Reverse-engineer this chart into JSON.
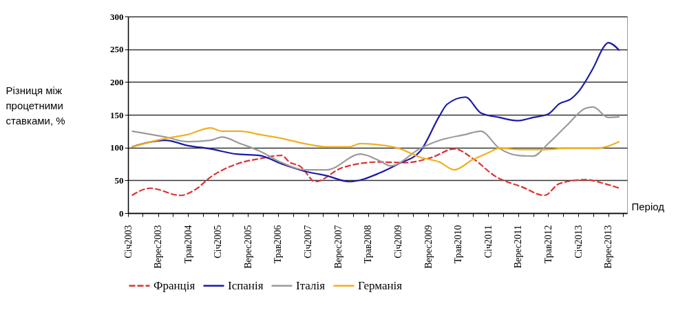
{
  "chart_data": {
    "type": "line",
    "xlabel": "Період",
    "ylabel": "Різниця між процетними ставками, %",
    "xlim": [
      "2003-01",
      "2014-02"
    ],
    "ylim": [
      0,
      300
    ],
    "yticks": [
      0,
      50,
      100,
      150,
      200,
      250,
      300
    ],
    "xticks": [
      {
        "value": "2003-01",
        "label": "Січ2003"
      },
      {
        "value": "2003-05",
        "label": null
      },
      {
        "value": "2003-09",
        "label": "Верес2003"
      },
      {
        "value": "2004-01",
        "label": null
      },
      {
        "value": "2004-05",
        "label": "Трав2004"
      },
      {
        "value": "2004-09",
        "label": null
      },
      {
        "value": "2005-01",
        "label": "Січ2005"
      },
      {
        "value": "2005-05",
        "label": null
      },
      {
        "value": "2005-09",
        "label": "Верес2005"
      },
      {
        "value": "2006-01",
        "label": null
      },
      {
        "value": "2006-05",
        "label": "Трав2006"
      },
      {
        "value": "2006-09",
        "label": null
      },
      {
        "value": "2007-01",
        "label": "Січ2007"
      },
      {
        "value": "2007-05",
        "label": null
      },
      {
        "value": "2007-09",
        "label": "Верес2007"
      },
      {
        "value": "2008-01",
        "label": null
      },
      {
        "value": "2008-05",
        "label": "Трав2008"
      },
      {
        "value": "2008-09",
        "label": null
      },
      {
        "value": "2009-01",
        "label": "Січ2009"
      },
      {
        "value": "2009-05",
        "label": null
      },
      {
        "value": "2009-09",
        "label": "Верес2009"
      },
      {
        "value": "2010-01",
        "label": null
      },
      {
        "value": "2010-05",
        "label": "Трав2010"
      },
      {
        "value": "2010-09",
        "label": null
      },
      {
        "value": "2011-01",
        "label": "Січ2011"
      },
      {
        "value": "2011-05",
        "label": null
      },
      {
        "value": "2011-09",
        "label": "Верес2011"
      },
      {
        "value": "2012-01",
        "label": null
      },
      {
        "value": "2012-05",
        "label": "Трав2012"
      },
      {
        "value": "2012-09",
        "label": null
      },
      {
        "value": "2013-01",
        "label": "Січ2013"
      },
      {
        "value": "2013-05",
        "label": null
      },
      {
        "value": "2013-09",
        "label": "Верес2013"
      },
      {
        "value": "2014-01",
        "label": null
      }
    ],
    "grid": "y",
    "legend": "bottom",
    "marker": "none",
    "series": [
      {
        "name": "Франція",
        "color": "#e03030",
        "line_style": "dashed",
        "x": [
          "2003-02",
          "2003-07",
          "2004-03",
          "2004-07",
          "2004-11",
          "2005-06",
          "2005-12",
          "2006-06",
          "2006-08",
          "2006-11",
          "2007-03",
          "2007-10",
          "2008-08",
          "2009-03",
          "2009-10",
          "2010-04",
          "2010-09",
          "2011-03",
          "2011-10",
          "2012-04",
          "2012-08",
          "2013-03",
          "2013-08",
          "2013-12"
        ],
        "values": [
          27,
          38,
          27,
          36,
          55,
          75,
          83,
          88,
          78,
          71,
          48,
          69,
          78,
          77,
          85,
          98,
          83,
          56,
          40,
          27,
          45,
          51,
          45,
          38
        ]
      },
      {
        "name": "Іспанія",
        "color": "#1a1aa8",
        "line_style": "solid",
        "x": [
          "2003-02",
          "2003-11",
          "2004-05",
          "2004-11",
          "2005-06",
          "2005-12",
          "2006-06",
          "2006-12",
          "2007-06",
          "2007-12",
          "2008-08",
          "2009-01",
          "2009-07",
          "2009-12",
          "2010-02",
          "2010-07",
          "2010-11",
          "2011-04",
          "2011-09",
          "2012-01",
          "2012-05",
          "2012-08",
          "2012-11",
          "2013-01",
          "2013-05",
          "2013-08",
          "2013-09",
          "2013-12"
        ],
        "values": [
          101,
          111,
          103,
          98,
          90,
          88,
          75,
          64,
          57,
          48,
          61,
          75,
          95,
          148,
          166,
          177,
          153,
          146,
          141,
          146,
          151,
          167,
          174,
          185,
          221,
          255,
          260,
          248
        ]
      },
      {
        "name": "Італія",
        "color": "#9a9a9a",
        "line_style": "solid",
        "x": [
          "2003-02",
          "2003-11",
          "2004-05",
          "2004-11",
          "2005-02",
          "2005-07",
          "2005-12",
          "2006-06",
          "2006-12",
          "2007-06",
          "2008-03",
          "2008-08",
          "2008-11",
          "2009-07",
          "2009-12",
          "2010-07",
          "2010-11",
          "2011-04",
          "2011-09",
          "2012-01",
          "2012-05",
          "2012-10",
          "2013-03",
          "2013-05",
          "2013-09",
          "2013-12"
        ],
        "values": [
          125,
          116,
          109,
          111,
          116,
          106,
          95,
          77,
          66,
          66,
          90,
          80,
          72,
          99,
          111,
          120,
          125,
          99,
          88,
          87,
          106,
          134,
          160,
          162,
          146,
          147
        ]
      },
      {
        "name": "Германія",
        "color": "#f0b020",
        "line_style": "solid",
        "x": [
          "2003-02",
          "2003-11",
          "2004-05",
          "2004-11",
          "2005-02",
          "2005-07",
          "2005-12",
          "2006-06",
          "2006-12",
          "2007-06",
          "2007-12",
          "2008-03",
          "2008-08",
          "2009-01",
          "2009-07",
          "2009-12",
          "2010-04",
          "2010-09",
          "2011-01",
          "2011-04",
          "2011-10",
          "2012-04",
          "2012-10",
          "2013-06",
          "2013-12"
        ],
        "values": [
          101,
          114,
          120,
          130,
          125,
          125,
          120,
          114,
          106,
          101,
          101,
          106,
          104,
          99,
          85,
          78,
          66,
          82,
          92,
          99,
          97,
          97,
          99,
          99,
          109
        ]
      }
    ]
  }
}
